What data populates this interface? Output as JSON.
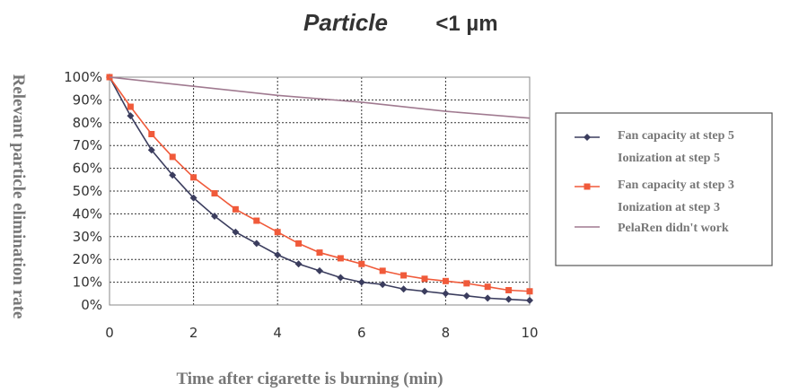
{
  "chart_data": {
    "type": "line",
    "title": "Particle",
    "subtitle": "<1 µm",
    "xlabel": "Time after cigarette is burning (min)",
    "ylabel": "Relevant particle elimination rate",
    "xlim": [
      0,
      10
    ],
    "ylim": [
      0,
      100
    ],
    "xticks": [
      "0",
      "2",
      "4",
      "6",
      "8",
      "10"
    ],
    "yticks": [
      "0%",
      "10%",
      "20%",
      "30%",
      "40%",
      "50%",
      "60%",
      "70%",
      "80%",
      "90%",
      "100%"
    ],
    "grid": true,
    "legend_position": "right",
    "series": [
      {
        "name": "Fan capacity at step 5",
        "name_line2": "Ionization at step 5",
        "color": "#3b3d5e",
        "marker": "diamond",
        "x": [
          0,
          0.5,
          1,
          1.5,
          2,
          2.5,
          3,
          3.5,
          4,
          4.5,
          5,
          5.5,
          6,
          6.5,
          7,
          7.5,
          8,
          8.5,
          9,
          9.5,
          10
        ],
        "y": [
          100,
          83,
          68,
          57,
          47,
          39,
          32,
          27,
          22,
          18,
          15,
          12,
          10,
          9,
          7,
          6,
          5,
          4,
          3,
          2.5,
          2
        ]
      },
      {
        "name": "Fan capacity at step 3",
        "name_line2": "Ionization at step 3",
        "color": "#f05a3a",
        "marker": "square",
        "x": [
          0,
          0.5,
          1,
          1.5,
          2,
          2.5,
          3,
          3.5,
          4,
          4.5,
          5,
          5.5,
          6,
          6.5,
          7,
          7.5,
          8,
          8.5,
          9,
          9.5,
          10
        ],
        "y": [
          100,
          87,
          75,
          65,
          56,
          49,
          42,
          37,
          32,
          27,
          23,
          20.5,
          18,
          15,
          13,
          11.5,
          10.5,
          9.5,
          8,
          6.5,
          6
        ]
      },
      {
        "name": "PelaRen didn't work",
        "color": "#a07a90",
        "marker": "none",
        "x": [
          0,
          2,
          4,
          6,
          8,
          10
        ],
        "y": [
          100,
          96,
          92,
          89,
          85,
          82
        ]
      }
    ]
  }
}
